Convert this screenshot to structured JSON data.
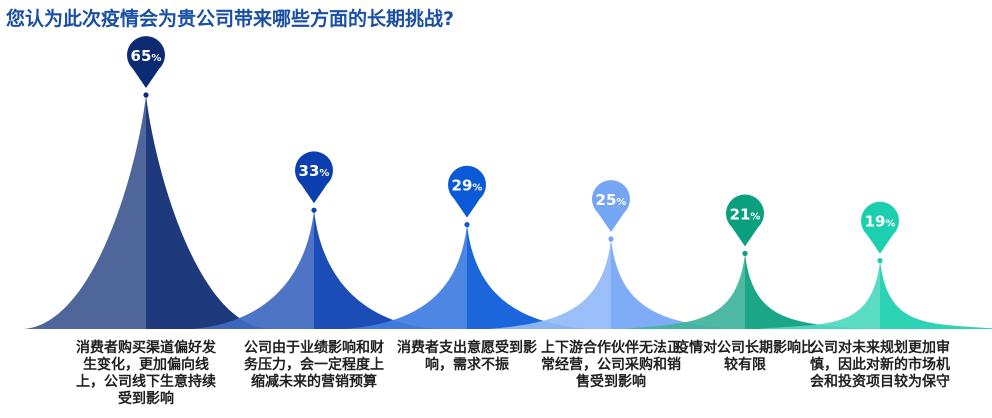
{
  "chart_data": {
    "type": "bar",
    "title": "您认为此次疫情会为贵公司带来哪些方面的长期挑战?",
    "unit": "%",
    "categories": [
      "消费者购买渠道偏好发生变化，更加偏向线上，公司线下生意持续受到影响",
      "公司由于业绩影响和财务压力，会一定程度上缩减未来的营销预算",
      "消费者支出意愿受到影响，需求不振",
      "上下游合作伙伴无法正常经营，公司采购和销售受到影响",
      "疫情对公司长期影响比较有限",
      "公司对未来规划更加审慎，因此对新的市场机会和投资项目较为保守"
    ],
    "values": [
      65,
      33,
      29,
      25,
      21,
      19
    ],
    "colors": [
      "#0d2b73",
      "#0b3fb0",
      "#0a5ad8",
      "#74a6f5",
      "#0a9f7f",
      "#1ccfae"
    ]
  }
}
